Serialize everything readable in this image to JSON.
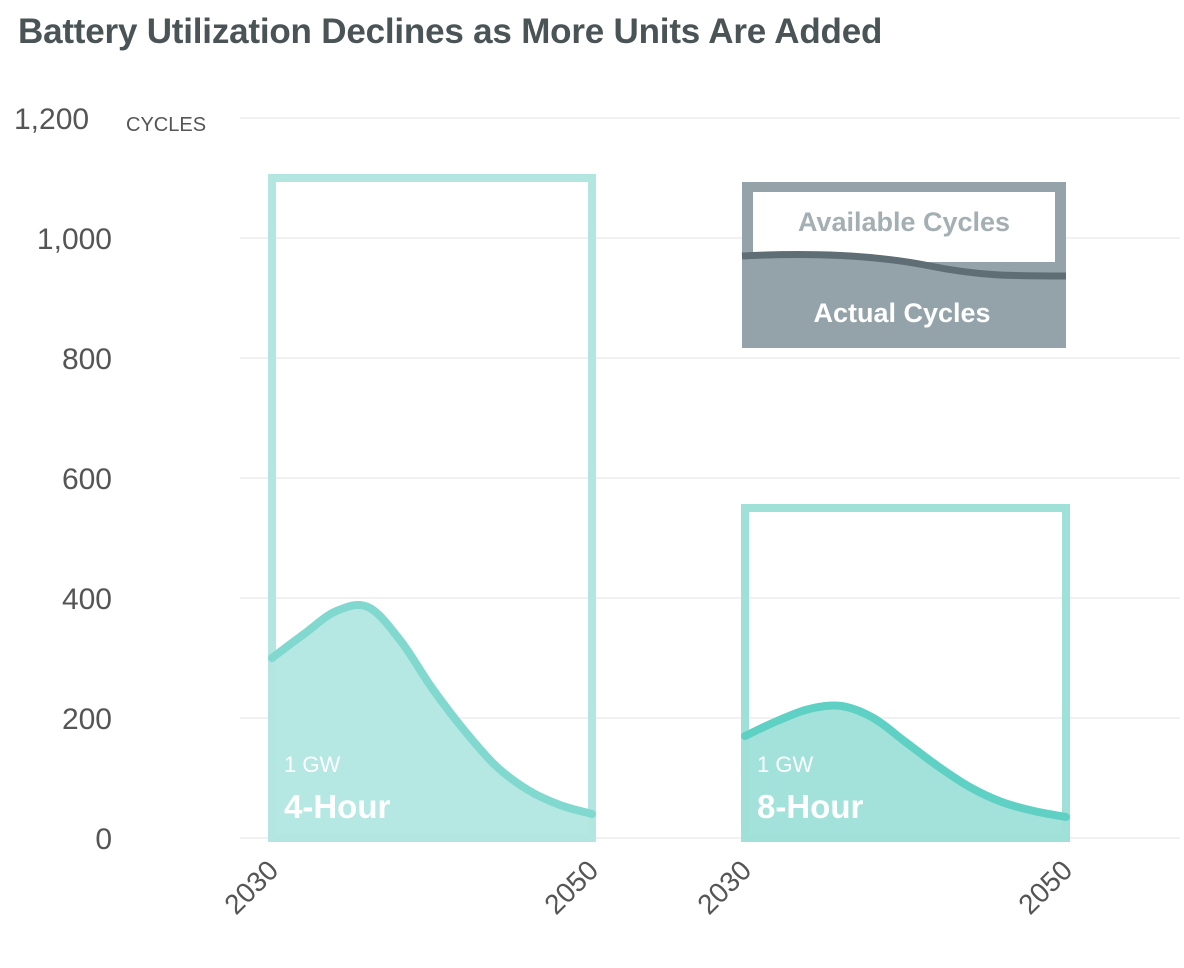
{
  "chart_data": {
    "type": "area",
    "title": "Battery Utilization Declines as More Units Are Added",
    "ylabel": "CYCLES",
    "ylim": [
      0,
      1200
    ],
    "yticks": [
      "0",
      "200",
      "400",
      "600",
      "800",
      "1,000",
      "1,200"
    ],
    "ytick_values": [
      0,
      200,
      400,
      600,
      800,
      1000,
      1200
    ],
    "grid": true,
    "legend": {
      "placement": "top-right",
      "available_label": "Available Cycles",
      "actual_label": "Actual Cycles"
    },
    "panels": [
      {
        "capacity_label": "1 GW",
        "duration_label": "4-Hour",
        "x_tick_labels": [
          "2030",
          "2050"
        ],
        "available_cycles": 1100,
        "x": [
          2030,
          2032,
          2034,
          2036,
          2038,
          2040,
          2042,
          2044,
          2046,
          2048,
          2050
        ],
        "actual_cycles": [
          300,
          340,
          378,
          385,
          330,
          250,
          180,
          120,
          80,
          55,
          40
        ]
      },
      {
        "capacity_label": "1 GW",
        "duration_label": "8-Hour",
        "x_tick_labels": [
          "2030",
          "2050"
        ],
        "available_cycles": 550,
        "x": [
          2030,
          2032,
          2034,
          2036,
          2038,
          2040,
          2042,
          2044,
          2046,
          2048,
          2050
        ],
        "actual_cycles": [
          170,
          195,
          215,
          220,
          200,
          160,
          120,
          85,
          60,
          45,
          35
        ]
      }
    ],
    "colors": {
      "panel1_fill": "#b6e8e3",
      "panel1_line": "#80d8ce",
      "panel1_box": "#b3e6e1",
      "panel2_fill": "#a3e2da",
      "panel2_line": "#5fd0c4",
      "panel2_box": "#9fe0d8",
      "legend_dark": "#93a3a9",
      "legend_line": "#5e6e74"
    }
  }
}
